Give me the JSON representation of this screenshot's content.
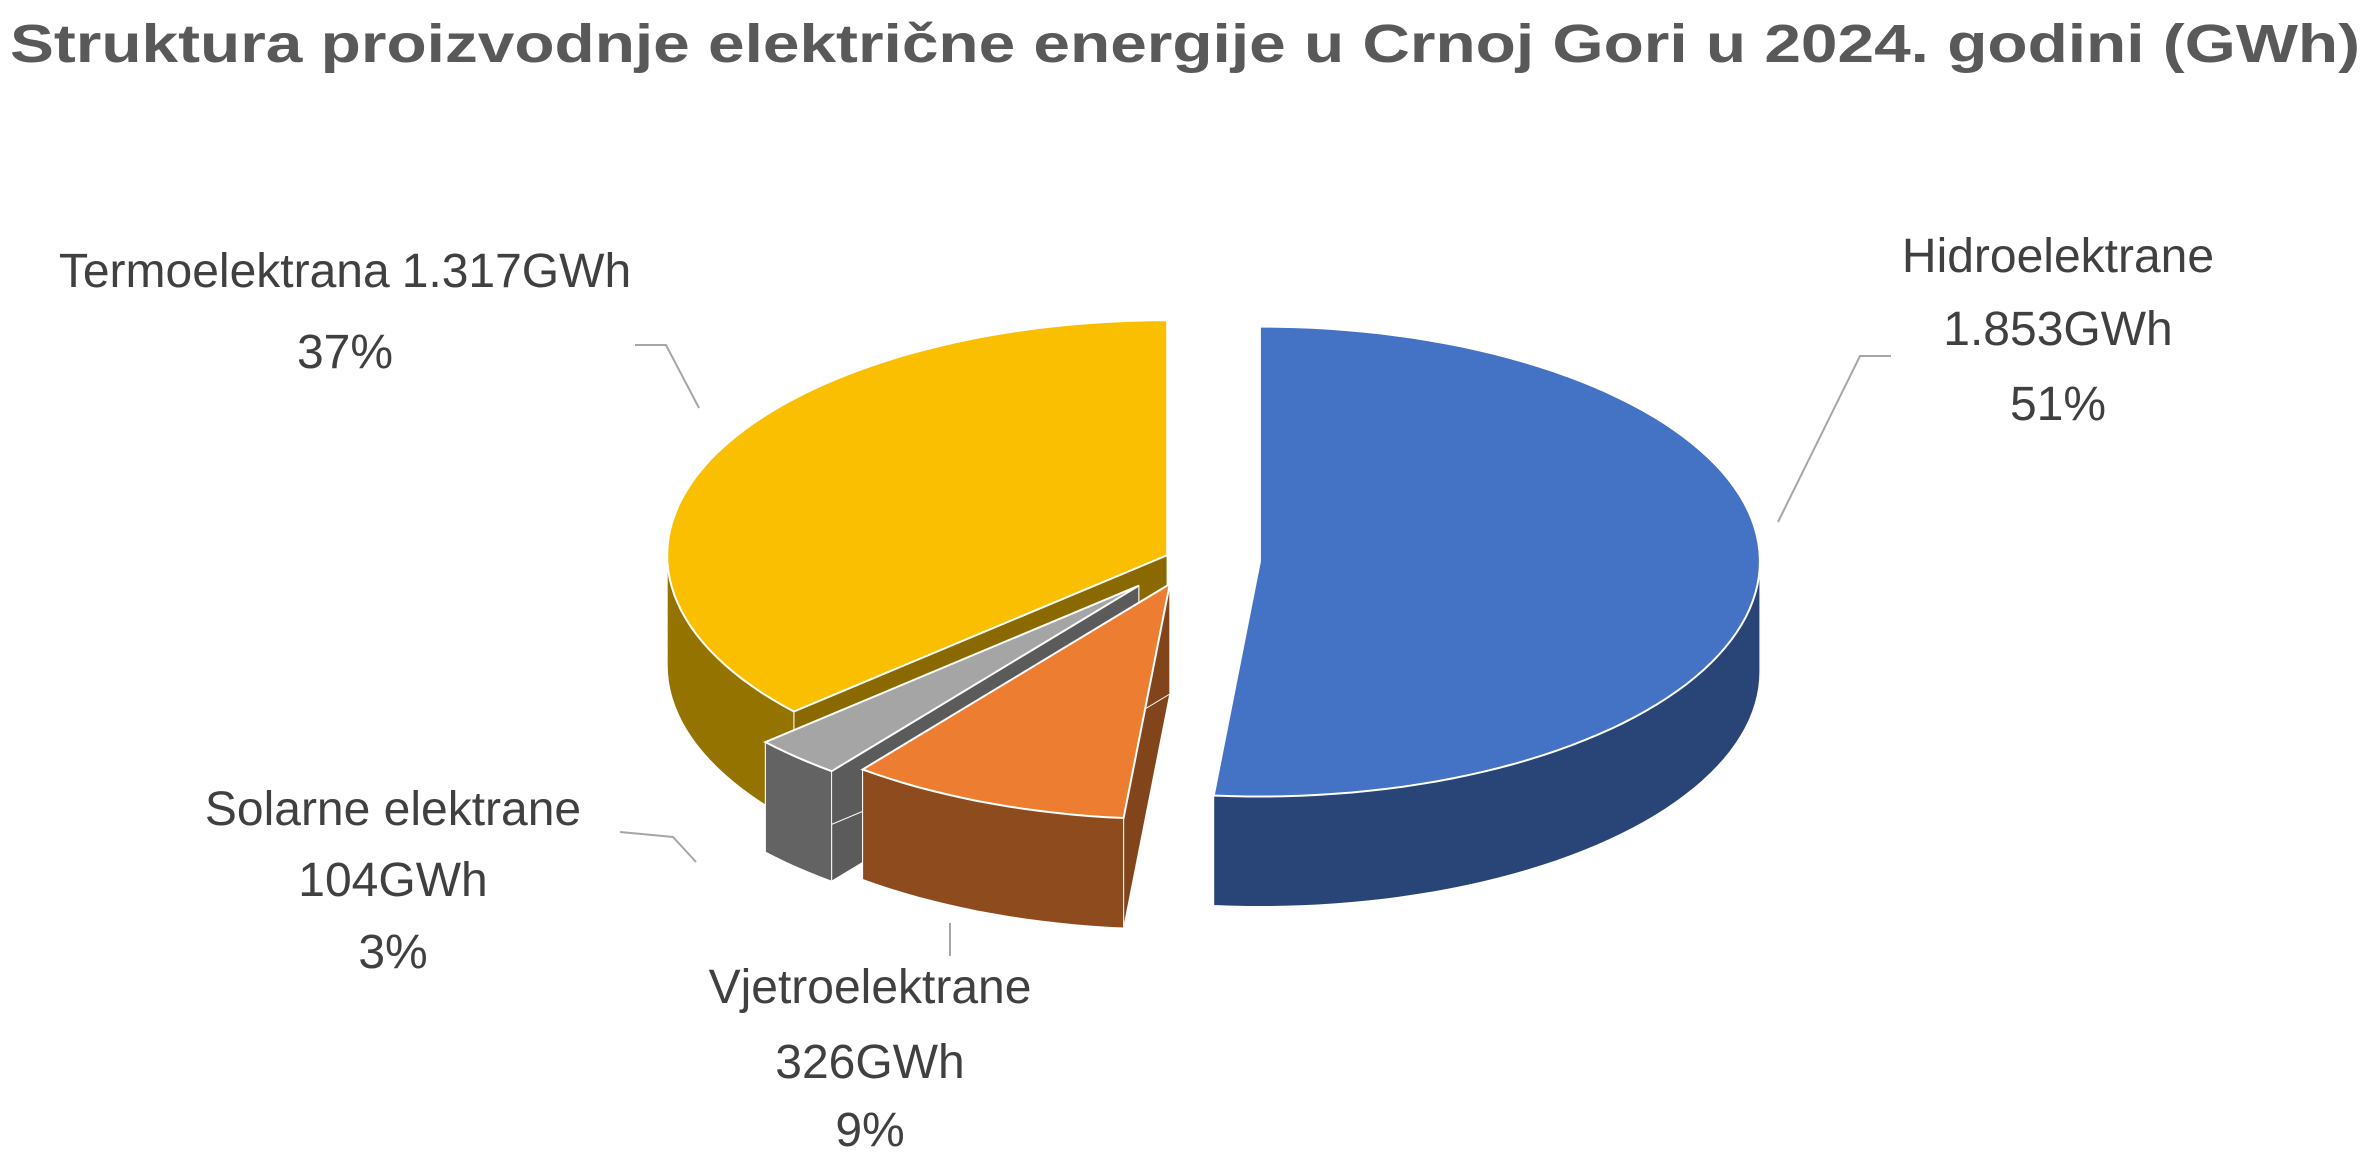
{
  "chart_data": {
    "type": "pie3d",
    "title": "Struktura proizvodnje električne energije u Crnoj Gori u 2024. godini  (GWh)",
    "categories": [
      "Hidroelektrane",
      "Vjetroelektrane",
      "Solarne elektrane",
      "Termoelektrana"
    ],
    "values": [
      1853,
      326,
      104,
      1317
    ],
    "value_labels": [
      "1.853GWh",
      "326GWh",
      "104GWh",
      "1.317GWh"
    ],
    "percents": [
      51,
      9,
      3,
      37
    ],
    "percent_labels": [
      "51%",
      "9%",
      "3%",
      "37%"
    ],
    "colors": [
      "#4472c4",
      "#ed7d31",
      "#a5a5a5",
      "#f9bf00"
    ]
  }
}
